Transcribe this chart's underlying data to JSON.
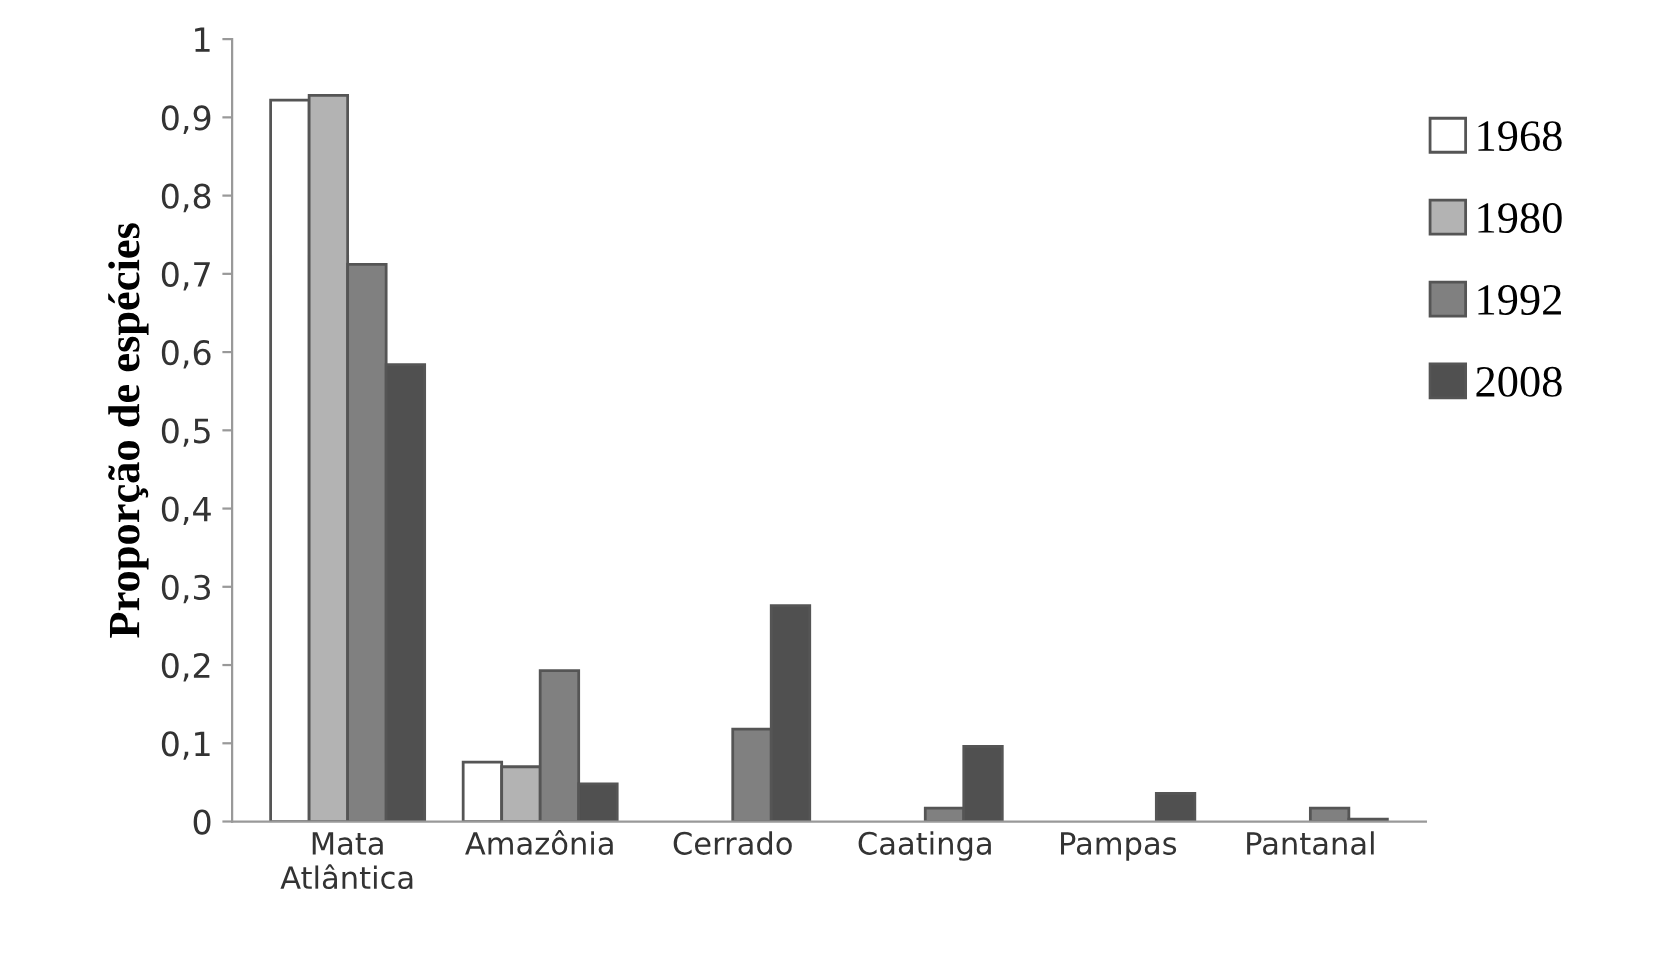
{
  "chart_data": {
    "type": "bar",
    "ylabel": "Proporção de espécies",
    "categories": [
      "Mata\nAtlântica",
      "Amazônia",
      "Cerrado",
      "Caatinga",
      "Pampas",
      "Pantanal"
    ],
    "series": [
      {
        "name": "1968",
        "color": "#ffffff",
        "values": [
          0.922,
          0.076,
          null,
          null,
          null,
          null
        ]
      },
      {
        "name": "1980",
        "color": "#b3b3b3",
        "values": [
          0.928,
          0.07,
          null,
          null,
          null,
          null
        ]
      },
      {
        "name": "1992",
        "color": "#808080",
        "values": [
          0.712,
          0.193,
          0.118,
          0.017,
          null,
          0.017
        ]
      },
      {
        "name": "2008",
        "color": "#505050",
        "values": [
          0.584,
          0.048,
          0.276,
          0.096,
          0.036,
          0.003
        ]
      }
    ],
    "ylim": [
      0,
      1
    ],
    "yticks": [
      {
        "value": 0,
        "label": "0"
      },
      {
        "value": 0.1,
        "label": "0,1"
      },
      {
        "value": 0.2,
        "label": "0,2"
      },
      {
        "value": 0.3,
        "label": "0,3"
      },
      {
        "value": 0.4,
        "label": "0,4"
      },
      {
        "value": 0.5,
        "label": "0,5"
      },
      {
        "value": 0.6,
        "label": "0,6"
      },
      {
        "value": 0.7,
        "label": "0,7"
      },
      {
        "value": 0.8,
        "label": "0,8"
      },
      {
        "value": 0.9,
        "label": "0,9"
      },
      {
        "value": 1,
        "label": "1"
      }
    ],
    "grid": false,
    "legend": "right"
  }
}
